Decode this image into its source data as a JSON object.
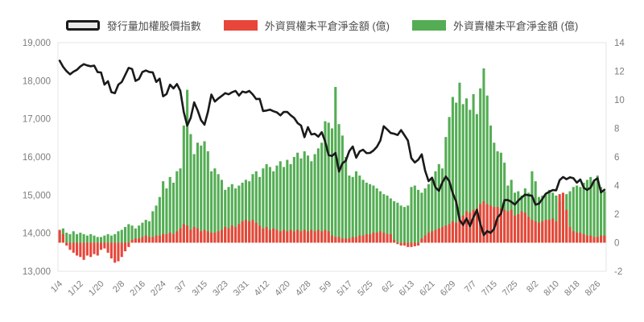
{
  "chart_data": {
    "type": "combo",
    "title": "",
    "grid": false,
    "legend_position": "top",
    "background": "#ffffff",
    "left_axis": {
      "min": 13000,
      "max": 19000,
      "step": 1000,
      "tick_labels": [
        "13,000",
        "14,000",
        "15,000",
        "16,000",
        "17,000",
        "18,000",
        "19,000"
      ]
    },
    "right_axis": {
      "min": -2,
      "max": 14,
      "step": 2,
      "tick_labels": [
        "-2",
        "0",
        "2",
        "4",
        "6",
        "8",
        "10",
        "12",
        "14"
      ]
    },
    "x_label_every": 6,
    "x_tick_labels": [
      "1/4",
      "1/12",
      "1/20",
      "2/8",
      "2/16",
      "2/24",
      "3/7",
      "3/15",
      "3/23",
      "3/31",
      "4/12",
      "4/20",
      "4/28",
      "5/9",
      "5/17",
      "5/25",
      "6/2",
      "6/13",
      "6/21",
      "6/29",
      "7/7",
      "7/15",
      "7/25",
      "8/2",
      "8/10",
      "8/18",
      "8/26"
    ],
    "x": [
      "1/4",
      "1/5",
      "1/6",
      "1/7",
      "1/10",
      "1/11",
      "1/12",
      "1/13",
      "1/14",
      "1/17",
      "1/18",
      "1/19",
      "1/20",
      "1/21",
      "1/24",
      "1/25",
      "1/26",
      "2/7",
      "2/8",
      "2/9",
      "2/10",
      "2/11",
      "2/14",
      "2/15",
      "2/16",
      "2/17",
      "2/18",
      "2/21",
      "2/22",
      "2/23",
      "2/24",
      "2/25",
      "3/1",
      "3/2",
      "3/3",
      "3/4",
      "3/7",
      "3/8",
      "3/9",
      "3/10",
      "3/11",
      "3/14",
      "3/15",
      "3/16",
      "3/17",
      "3/18",
      "3/21",
      "3/22",
      "3/23",
      "3/24",
      "3/25",
      "3/28",
      "3/29",
      "3/30",
      "3/31",
      "4/1",
      "4/6",
      "4/7",
      "4/8",
      "4/11",
      "4/12",
      "4/13",
      "4/14",
      "4/15",
      "4/18",
      "4/19",
      "4/20",
      "4/21",
      "4/22",
      "4/25",
      "4/26",
      "4/27",
      "4/28",
      "4/29",
      "5/3",
      "5/4",
      "5/5",
      "5/6",
      "5/9",
      "5/10",
      "5/11",
      "5/12",
      "5/13",
      "5/16",
      "5/17",
      "5/18",
      "5/19",
      "5/20",
      "5/23",
      "5/24",
      "5/25",
      "5/26",
      "5/27",
      "5/30",
      "5/31",
      "6/1",
      "6/2",
      "6/6",
      "6/7",
      "6/8",
      "6/9",
      "6/10",
      "6/13",
      "6/14",
      "6/15",
      "6/16",
      "6/17",
      "6/20",
      "6/21",
      "6/22",
      "6/23",
      "6/24",
      "6/27",
      "6/28",
      "6/29",
      "6/30",
      "7/1",
      "7/4",
      "7/5",
      "7/6",
      "7/7",
      "7/8",
      "7/11",
      "7/12",
      "7/13",
      "7/14",
      "7/15",
      "7/18",
      "7/19",
      "7/20",
      "7/21",
      "7/22",
      "7/25",
      "7/26",
      "7/27",
      "7/28",
      "7/29",
      "8/1",
      "8/2",
      "8/3",
      "8/4",
      "8/5",
      "8/8",
      "8/9",
      "8/10",
      "8/11",
      "8/12",
      "8/15",
      "8/16",
      "8/17",
      "8/18",
      "8/19",
      "8/22",
      "8/23",
      "8/24",
      "8/25",
      "8/26",
      "8/29",
      "8/30"
    ],
    "series": [
      {
        "name": "發行量加權股價指數",
        "type": "line",
        "axis": "left",
        "color": "#1a1a1a",
        "swatch_fill": "#e8e8e8",
        "values": [
          18526,
          18367,
          18253,
          18170,
          18239,
          18288,
          18374,
          18436,
          18403,
          18380,
          18398,
          18227,
          18218,
          17899,
          17989,
          17701,
          17674,
          17900,
          17966,
          18151,
          18338,
          18310,
          17997,
          18048,
          18231,
          18268,
          18232,
          18221,
          17969,
          18055,
          17594,
          17652,
          17898,
          17800,
          17914,
          17736,
          17178,
          16825,
          17026,
          17432,
          17224,
          16967,
          16848,
          17184,
          17638,
          17456,
          17535,
          17602,
          17676,
          17643,
          17698,
          17734,
          17612,
          17716,
          17693,
          17732,
          17639,
          17518,
          17526,
          17206,
          17219,
          17243,
          17199,
          17170,
          17093,
          17180,
          17182,
          17094,
          17025,
          16889,
          16824,
          16519,
          16781,
          16592,
          16608,
          16533,
          16651,
          16408,
          16048,
          16027,
          16106,
          15616,
          15832,
          15902,
          16155,
          16274,
          15981,
          16145,
          16190,
          16101,
          16106,
          16170,
          16266,
          16434,
          16807,
          16722,
          16629,
          16610,
          16576,
          16706,
          16572,
          16430,
          15968,
          15857,
          15929,
          16070,
          15641,
          15367,
          15457,
          15200,
          15112,
          15334,
          15487,
          15367,
          15050,
          14825,
          14343,
          14217,
          14387,
          14186,
          14418,
          14610,
          14244,
          13951,
          14054,
          14007,
          14114,
          14414,
          14512,
          14867,
          14872,
          14821,
          14752,
          14855,
          14937,
          15011,
          14996,
          14981,
          14747,
          14777,
          14899,
          15036,
          15085,
          15132,
          15126,
          15392,
          15475,
          15417,
          15465,
          15442,
          15326,
          15408,
          15190,
          15135,
          15200,
          15380,
          15440,
          15070,
          15140
        ]
      },
      {
        "name": "外資買權未平倉淨金額 (億)",
        "type": "bar",
        "axis": "right",
        "color": "#e8463a",
        "values": [
          0.9,
          0.6,
          -0.2,
          -0.5,
          -0.7,
          -0.9,
          -1.0,
          -1.2,
          -0.9,
          -1.0,
          -0.8,
          -0.9,
          -0.5,
          -0.4,
          -0.7,
          -1.1,
          -1.4,
          -1.3,
          -1.0,
          -0.6,
          -0.3,
          0.2,
          0.3,
          0.3,
          0.4,
          0.5,
          0.4,
          0.4,
          0.5,
          0.5,
          0.6,
          0.6,
          0.7,
          0.6,
          0.8,
          1.0,
          1.3,
          1.2,
          0.9,
          1.1,
          1.0,
          0.8,
          0.9,
          0.8,
          0.7,
          0.7,
          0.8,
          0.9,
          1.1,
          1.0,
          1.2,
          1.1,
          1.3,
          1.5,
          1.6,
          1.5,
          1.6,
          1.4,
          1.2,
          1.0,
          1.1,
          0.9,
          1.0,
          0.9,
          0.8,
          0.9,
          0.8,
          0.9,
          0.8,
          0.9,
          0.8,
          0.9,
          0.8,
          0.9,
          0.8,
          0.9,
          0.8,
          0.9,
          0.8,
          0.5,
          0.4,
          0.4,
          0.3,
          0.3,
          0.3,
          0.4,
          0.4,
          0.5,
          0.5,
          0.6,
          0.6,
          0.7,
          0.7,
          0.8,
          0.7,
          0.6,
          0.6,
          0.2,
          -0.1,
          -0.2,
          -0.2,
          -0.3,
          -0.3,
          -0.25,
          -0.2,
          0.3,
          0.5,
          0.7,
          0.8,
          0.9,
          1.0,
          1.1,
          1.2,
          1.3,
          1.5,
          1.4,
          1.7,
          1.9,
          2.2,
          2.1,
          2.3,
          2.4,
          2.7,
          2.9,
          2.7,
          2.6,
          2.5,
          2.5,
          2.4,
          2.3,
          2.2,
          2.3,
          1.9,
          2.0,
          2.2,
          2.1,
          1.8,
          1.6,
          1.5,
          1.4,
          1.5,
          1.6,
          1.6,
          1.7,
          1.5,
          3.4,
          3.5,
          2.3,
          1.1,
          0.8,
          0.7,
          0.7,
          0.6,
          0.5,
          0.5,
          0.4,
          0.4,
          0.5,
          0.5
        ]
      },
      {
        "name": "外資賣權未平倉淨金額 (億)",
        "type": "bar",
        "axis": "right",
        "color": "#54ad54",
        "values": [
          0.8,
          1.0,
          0.7,
          0.6,
          0.8,
          0.6,
          0.7,
          0.6,
          0.5,
          0.6,
          0.5,
          0.4,
          0.4,
          0.5,
          0.6,
          0.5,
          0.6,
          0.8,
          0.9,
          1.1,
          1.3,
          1.2,
          1.0,
          1.2,
          1.4,
          1.6,
          1.5,
          2.2,
          2.6,
          3.2,
          4.3,
          3.8,
          4.6,
          4.2,
          5.0,
          5.2,
          8.2,
          10.7,
          7.6,
          6.2,
          7.0,
          6.8,
          7.1,
          6.4,
          5.0,
          5.2,
          4.8,
          4.4,
          3.7,
          3.9,
          4.1,
          3.8,
          4.0,
          4.2,
          4.4,
          4.3,
          4.8,
          5.0,
          4.6,
          5.2,
          5.5,
          5.3,
          5.0,
          5.4,
          5.7,
          5.3,
          5.8,
          5.5,
          6.0,
          6.3,
          5.9,
          6.4,
          6.1,
          5.7,
          6.2,
          6.6,
          7.0,
          8.5,
          8.4,
          8.0,
          10.9,
          8.3,
          7.5,
          6.0,
          4.7,
          4.6,
          5.0,
          4.7,
          4.4,
          4.2,
          4.1,
          4.0,
          3.8,
          3.6,
          3.4,
          3.3,
          3.1,
          2.9,
          2.8,
          2.6,
          2.5,
          2.6,
          3.9,
          4.0,
          3.7,
          3.5,
          3.8,
          4.1,
          4.4,
          5.0,
          5.5,
          5.2,
          7.4,
          8.8,
          10.2,
          9.8,
          11.2,
          9.7,
          10.1,
          9.3,
          10.4,
          9.0,
          10.8,
          12.2,
          10.3,
          8.2,
          7.0,
          6.4,
          6.3,
          5.6,
          4.0,
          4.4,
          3.5,
          3.6,
          3.3,
          3.8,
          3.5,
          5.0,
          4.3,
          3.2,
          3.3,
          3.4,
          3.7,
          3.5,
          3.3,
          2.9,
          3.1,
          3.4,
          3.6,
          3.9,
          4.0,
          3.9,
          4.2,
          4.4,
          4.6,
          4.3,
          4.7,
          3.9,
          3.6
        ]
      }
    ]
  }
}
